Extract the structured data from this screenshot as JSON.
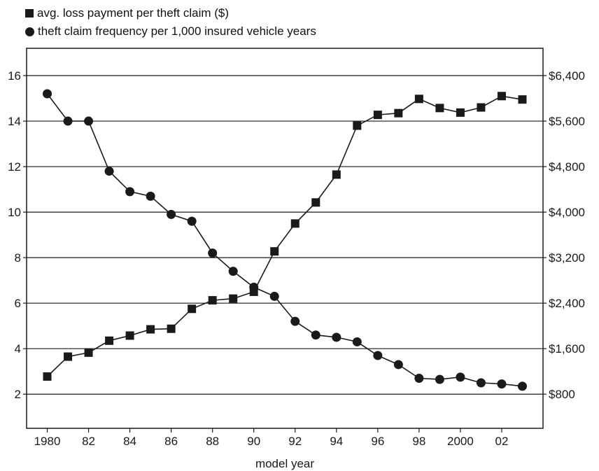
{
  "chart_data": {
    "type": "line",
    "x": [
      1980,
      1981,
      1982,
      1983,
      1984,
      1985,
      1986,
      1987,
      1988,
      1989,
      1990,
      1991,
      1992,
      1993,
      1994,
      1995,
      1996,
      1997,
      1998,
      1999,
      2000,
      2001,
      2002,
      2003
    ],
    "x_tick_values": [
      1980,
      1982,
      1984,
      1986,
      1988,
      1990,
      1992,
      1994,
      1996,
      1998,
      2000,
      2002
    ],
    "x_tick_labels": [
      "1980",
      "82",
      "84",
      "86",
      "88",
      "90",
      "92",
      "94",
      "96",
      "98",
      "2000",
      "02"
    ],
    "xlabel": "model year",
    "xlim": [
      1979,
      2004
    ],
    "left_axis": {
      "ylim": [
        0.5,
        17.2
      ],
      "ticks": [
        2,
        4,
        6,
        8,
        10,
        12,
        14,
        16
      ],
      "tick_labels": [
        "2",
        "4",
        "6",
        "8",
        "10",
        "12",
        "14",
        "16"
      ]
    },
    "right_axis": {
      "ylim": [
        200,
        6880
      ],
      "ticks": [
        800,
        1600,
        2400,
        3200,
        4000,
        4800,
        5600,
        6400
      ],
      "tick_labels": [
        "$800",
        "$1,600",
        "$2,400",
        "$3,200",
        "$4,000",
        "$4,800",
        "$5,600",
        "$6,400"
      ]
    },
    "grid": "horizontal",
    "legend_placement": "top-left",
    "series": [
      {
        "name": "avg. loss payment per theft claim ($)",
        "marker": "square",
        "axis": "right",
        "values": [
          1110,
          1460,
          1530,
          1740,
          1830,
          1940,
          1950,
          2300,
          2450,
          2480,
          2600,
          3310,
          3800,
          4170,
          4660,
          5520,
          5710,
          5740,
          5990,
          5830,
          5750,
          5840,
          6040,
          5980
        ]
      },
      {
        "name": "theft claim frequency per 1,000 insured vehicle years",
        "marker": "circle",
        "axis": "left",
        "values": [
          15.2,
          14.0,
          14.0,
          11.8,
          10.9,
          10.7,
          9.9,
          9.6,
          8.2,
          7.4,
          6.7,
          6.3,
          5.2,
          4.6,
          4.5,
          4.3,
          3.7,
          3.3,
          2.7,
          2.65,
          2.75,
          2.5,
          2.45,
          2.35
        ]
      }
    ],
    "colors": {
      "line": "#1a1a1a",
      "marker": "#1a1a1a"
    }
  }
}
